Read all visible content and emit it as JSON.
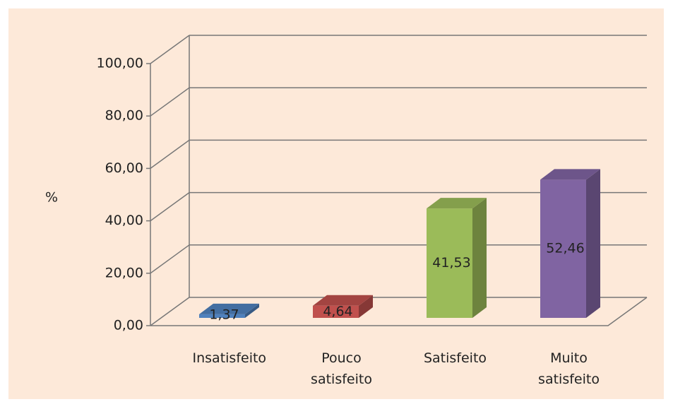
{
  "chart_data": {
    "type": "bar3d",
    "y_label": "%",
    "categories": [
      "Insatisfeito",
      "Pouco satisfeito",
      "Satisfeito",
      "Muito satisfeito"
    ],
    "values": [
      1.37,
      4.64,
      41.53,
      52.46
    ],
    "value_labels": [
      "1,37",
      "4,64",
      "41,53",
      "52,46"
    ],
    "colors": [
      "#4f81bd",
      "#c0504d",
      "#9bbb59",
      "#8064a2"
    ],
    "ylim": [
      0,
      100
    ],
    "yticks": [
      {
        "value": 0,
        "label": "0,00"
      },
      {
        "value": 20,
        "label": "20,00"
      },
      {
        "value": 40,
        "label": "40,00"
      },
      {
        "value": 60,
        "label": "60,00"
      },
      {
        "value": 80,
        "label": "80,00"
      },
      {
        "value": 100,
        "label": "100,00"
      }
    ],
    "grid": true
  }
}
